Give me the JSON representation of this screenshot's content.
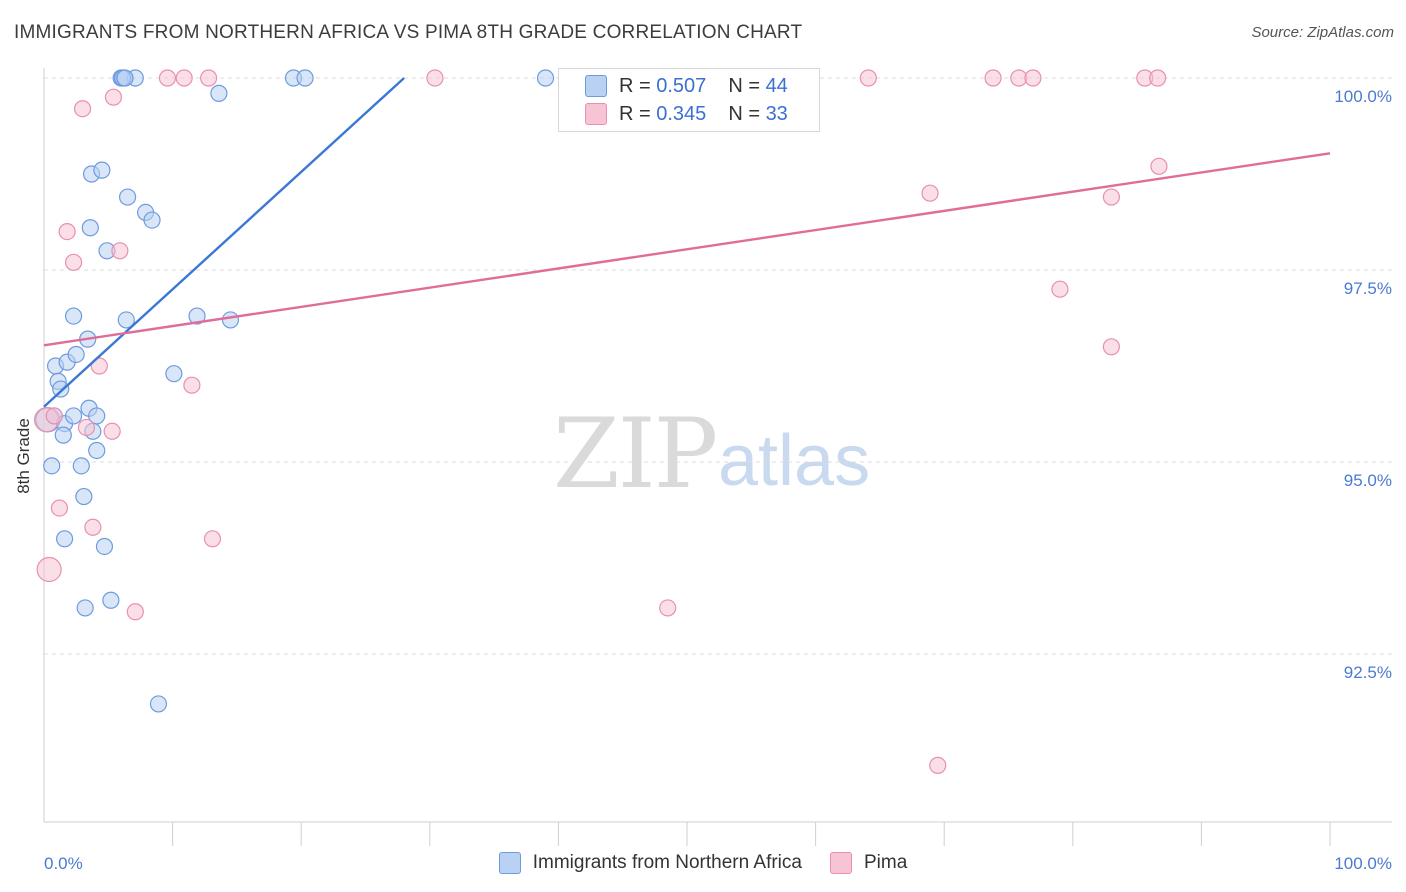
{
  "title": "IMMIGRANTS FROM NORTHERN AFRICA VS PIMA 8TH GRADE CORRELATION CHART",
  "source": "Source: ZipAtlas.com",
  "watermark_zip": "ZIP",
  "watermark_atlas": "atlas",
  "colors": {
    "blue": "#3a78d4",
    "blue_fill": "#b9d1f3",
    "pink": "#e06c98",
    "pink_fill": "#f6c4d4",
    "tick_text": "#4a7bd0"
  },
  "legend": {
    "rows": [
      {
        "r_label": "R = ",
        "r_value": "0.507",
        "n_label": "N = ",
        "n_value": "44"
      },
      {
        "r_label": "R = ",
        "r_value": "0.345",
        "n_label": "N = ",
        "n_value": "33"
      }
    ]
  },
  "bottom_legend": [
    "Immigrants from Northern Africa",
    "Pima"
  ],
  "chart_data": {
    "type": "scatter",
    "title": "IMMIGRANTS FROM NORTHERN AFRICA VS PIMA 8TH GRADE CORRELATION CHART",
    "xlabel": "",
    "ylabel": "8th Grade",
    "xlim": [
      0,
      100
    ],
    "ylim": [
      90.0,
      100.5
    ],
    "x_tick_labels": [
      "0.0%",
      "100.0%"
    ],
    "y_ticks": [
      92.5,
      95.0,
      97.5,
      100.0
    ],
    "y_tick_labels": [
      "92.5%",
      "95.0%",
      "97.5%",
      "100.0%"
    ],
    "grid": "horizontal dashed",
    "legend_position": "top-center",
    "series": [
      {
        "name": "Immigrants from Northern Africa",
        "r": 0.507,
        "n": 44,
        "trend": [
          [
            0,
            95.72
          ],
          [
            28,
            100.0
          ]
        ],
        "points": [
          [
            0.3,
            95.55
          ],
          [
            0.8,
            95.6
          ],
          [
            0.6,
            94.95
          ],
          [
            0.9,
            96.25
          ],
          [
            1.1,
            96.05
          ],
          [
            1.3,
            95.95
          ],
          [
            1.6,
            95.5
          ],
          [
            1.5,
            95.35
          ],
          [
            1.8,
            96.3
          ],
          [
            2.3,
            95.6
          ],
          [
            2.5,
            96.4
          ],
          [
            2.9,
            94.95
          ],
          [
            2.3,
            96.9
          ],
          [
            3.4,
            96.6
          ],
          [
            3.5,
            95.7
          ],
          [
            4.1,
            95.6
          ],
          [
            3.8,
            95.4
          ],
          [
            4.1,
            95.15
          ],
          [
            1.6,
            94.0
          ],
          [
            3.1,
            94.55
          ],
          [
            4.7,
            93.9
          ],
          [
            3.2,
            93.1
          ],
          [
            5.2,
            93.2
          ],
          [
            3.6,
            98.05
          ],
          [
            3.7,
            98.75
          ],
          [
            4.5,
            98.8
          ],
          [
            6.5,
            98.45
          ],
          [
            7.9,
            98.25
          ],
          [
            8.4,
            98.15
          ],
          [
            4.9,
            97.75
          ],
          [
            6.4,
            96.85
          ],
          [
            10.1,
            96.15
          ],
          [
            11.9,
            96.9
          ],
          [
            14.5,
            96.85
          ],
          [
            6.0,
            100.0
          ],
          [
            6.2,
            100.0
          ],
          [
            7.1,
            100.0
          ],
          [
            13.6,
            99.8
          ],
          [
            19.4,
            100.0
          ],
          [
            20.3,
            100.0
          ],
          [
            39.0,
            100.0
          ],
          [
            8.9,
            91.85
          ],
          [
            6.1,
            100.0
          ],
          [
            6.3,
            100.0
          ]
        ]
      },
      {
        "name": "Pima",
        "r": 0.345,
        "n": 33,
        "trend": [
          [
            0,
            96.52
          ],
          [
            100,
            99.02
          ]
        ],
        "points": [
          [
            0.2,
            95.55
          ],
          [
            0.4,
            93.6
          ],
          [
            0.8,
            95.6
          ],
          [
            1.2,
            94.4
          ],
          [
            1.8,
            98.0
          ],
          [
            2.3,
            97.6
          ],
          [
            3.0,
            99.6
          ],
          [
            5.4,
            99.75
          ],
          [
            3.3,
            95.45
          ],
          [
            3.8,
            94.15
          ],
          [
            4.3,
            96.25
          ],
          [
            5.3,
            95.4
          ],
          [
            5.9,
            97.75
          ],
          [
            7.1,
            93.05
          ],
          [
            9.6,
            100.0
          ],
          [
            10.9,
            100.0
          ],
          [
            11.5,
            96.0
          ],
          [
            12.8,
            100.0
          ],
          [
            13.1,
            94.0
          ],
          [
            30.4,
            100.0
          ],
          [
            48.5,
            93.1
          ],
          [
            64.1,
            100.0
          ],
          [
            68.9,
            98.5
          ],
          [
            69.5,
            91.05
          ],
          [
            73.8,
            100.0
          ],
          [
            75.8,
            100.0
          ],
          [
            76.9,
            100.0
          ],
          [
            79.0,
            97.25
          ],
          [
            83.0,
            98.45
          ],
          [
            83.0,
            96.5
          ],
          [
            85.6,
            100.0
          ],
          [
            86.6,
            100.0
          ],
          [
            86.7,
            98.85
          ]
        ]
      }
    ]
  }
}
